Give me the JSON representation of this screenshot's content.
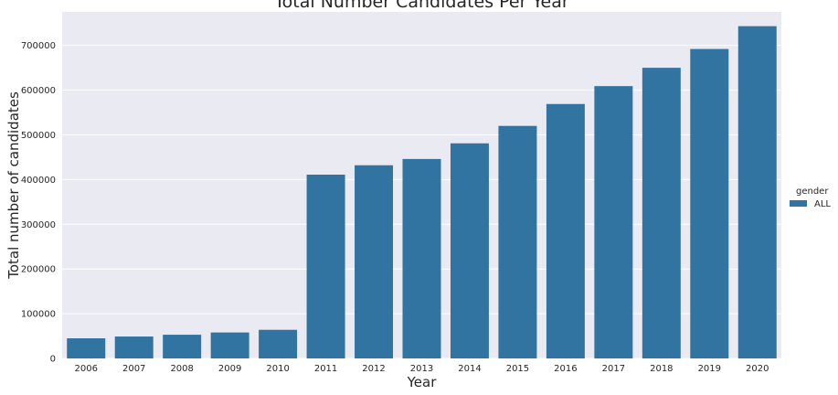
{
  "chart_data": {
    "type": "bar",
    "title": "Total Number Candidates Per Year",
    "xlabel": "Year",
    "ylabel": "Total number of candidates",
    "categories": [
      "2006",
      "2007",
      "2008",
      "2009",
      "2010",
      "2011",
      "2012",
      "2013",
      "2014",
      "2015",
      "2016",
      "2017",
      "2018",
      "2019",
      "2020"
    ],
    "series": [
      {
        "name": "ALL",
        "values": [
          45000,
          49000,
          53000,
          58000,
          64000,
          411000,
          432000,
          446000,
          481000,
          520000,
          569000,
          609000,
          650000,
          692000,
          743000
        ]
      }
    ],
    "ylim": [
      0,
      775000
    ],
    "yticks": [
      0,
      100000,
      200000,
      300000,
      400000,
      500000,
      600000,
      700000
    ],
    "ytick_labels": [
      "0",
      "100000",
      "200000",
      "300000",
      "400000",
      "500000",
      "600000",
      "700000"
    ],
    "grid": true,
    "legend": {
      "title": "gender",
      "placement": "right"
    },
    "colors": {
      "bar": "#3274a1",
      "plot_bg": "#eaeaf2",
      "grid": "#ffffff"
    }
  }
}
